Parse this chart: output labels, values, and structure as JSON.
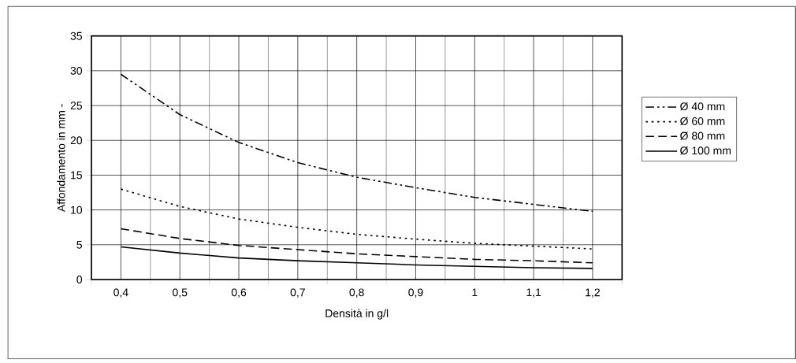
{
  "chart_data": {
    "type": "line",
    "xlabel": "Densità in g/l",
    "ylabel": "Affondamento in mm -",
    "categories": [
      "0,4",
      "0,5",
      "0,6",
      "0,7",
      "0,8",
      "0,9",
      "1",
      "1,1",
      "1,2"
    ],
    "series": [
      {
        "name": "Ø 40 mm",
        "color": "#000000",
        "line_style": "dashdotdotted",
        "values": [
          29.5,
          23.7,
          19.7,
          16.8,
          14.7,
          13.2,
          11.8,
          10.8,
          9.8
        ]
      },
      {
        "name": "Ø 60 mm",
        "color": "#000000",
        "line_style": "dotted",
        "values": [
          13.0,
          10.5,
          8.7,
          7.5,
          6.5,
          5.8,
          5.2,
          4.8,
          4.4
        ]
      },
      {
        "name": "Ø 80 mm",
        "color": "#000000",
        "line_style": "dashed",
        "values": [
          7.3,
          5.9,
          4.9,
          4.3,
          3.7,
          3.3,
          2.9,
          2.7,
          2.4
        ]
      },
      {
        "name": "Ø 100 mm",
        "color": "#000000",
        "line_style": "solid",
        "values": [
          4.7,
          3.8,
          3.1,
          2.7,
          2.4,
          2.1,
          1.9,
          1.7,
          1.6
        ]
      }
    ],
    "ylim": [
      0,
      35
    ],
    "yticks": [
      0,
      5,
      10,
      15,
      20,
      25,
      30,
      35
    ],
    "grid": true,
    "legend": "right",
    "marker": "none"
  }
}
